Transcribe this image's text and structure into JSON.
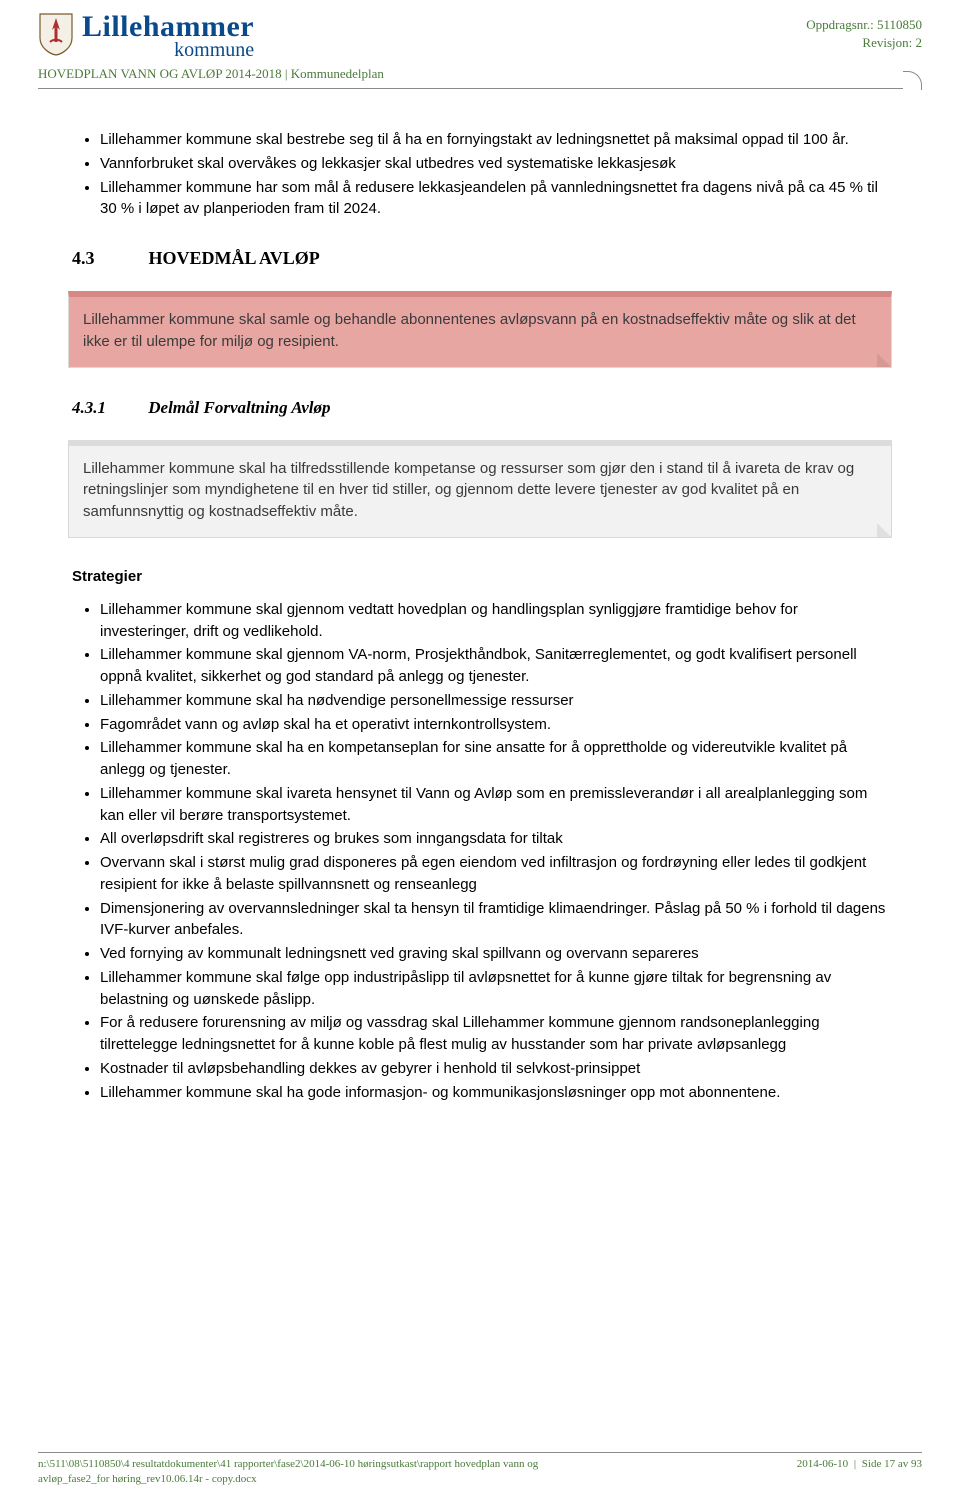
{
  "header": {
    "logo_main": "Lillehammer",
    "logo_sub": "kommune",
    "oppdragsnr_label": "Oppdragsnr.: 5110850",
    "revisjon_label": "Revisjon: 2",
    "doc_title": "HOVEDPLAN VANN OG AVLØP 2014-2018 | Kommunedelplan"
  },
  "top_bullets": [
    "Lillehammer kommune skal bestrebe seg til å ha en fornyingstakt av ledningsnettet på maksimal oppad til 100 år.",
    "Vannforbruket skal overvåkes og lekkasjer skal utbedres ved systematiske lekkasjesøk",
    "Lillehammer kommune har som mål å redusere lekkasjeandelen på vannledningsnettet fra dagens nivå på ca 45 % til 30 % i løpet av planperioden fram til 2024."
  ],
  "section": {
    "num": "4.3",
    "title": "HOVEDMÅL AVLØP",
    "callout_pink": "Lillehammer kommune skal samle og behandle abonnentenes avløpsvann på en kostnadseffektiv måte og slik at det ikke er til ulempe for miljø og resipient."
  },
  "subsection": {
    "num": "4.3.1",
    "title": "Delmål Forvaltning Avløp",
    "callout_grey": "Lillehammer kommune skal ha tilfredsstillende kompetanse og ressurser som gjør den i stand til å ivareta de krav og retningslinjer som myndighetene til en hver tid stiller, og gjennom dette levere tjenester av god kvalitet på en samfunnsnyttig og kostnadseffektiv måte."
  },
  "strategier": {
    "heading": "Strategier",
    "items": [
      "Lillehammer kommune skal gjennom vedtatt hovedplan og handlingsplan synliggjøre framtidige behov for investeringer, drift og vedlikehold.",
      "Lillehammer kommune skal gjennom VA-norm, Prosjekthåndbok, Sanitærreglementet, og godt kvalifisert personell oppnå kvalitet, sikkerhet og god standard på anlegg og tjenester.",
      "Lillehammer kommune skal ha nødvendige personellmessige ressurser",
      "Fagområdet vann og avløp skal ha et operativt internkontrollsystem.",
      "Lillehammer kommune skal ha en kompetanseplan for sine ansatte for å opprettholde og videreutvikle kvalitet på anlegg og tjenester.",
      "Lillehammer kommune skal ivareta hensynet til Vann og Avløp som en premissleverandør i all arealplanlegging som kan eller vil berøre transportsystemet.",
      "All overløpsdrift skal registreres og brukes som inngangsdata for tiltak",
      "Overvann skal i størst mulig grad disponeres på egen eiendom ved infiltrasjon og fordrøyning eller ledes til godkjent resipient for ikke å belaste spillvannsnett og renseanlegg",
      "Dimensjonering av overvannsledninger skal ta hensyn til framtidige klimaendringer. Påslag på 50 % i forhold til dagens IVF-kurver anbefales.",
      "Ved fornying av kommunalt ledningsnett ved graving skal spillvann og overvann separeres",
      "Lillehammer kommune skal følge opp industripåslipp til avløpsnettet for å kunne gjøre tiltak for begrensning av belastning og uønskede påslipp.",
      "For å redusere forurensning av miljø og vassdrag skal Lillehammer kommune gjennom randsoneplanlegging tilrettelegge ledningsnettet for å kunne koble på flest mulig av husstander som har private avløpsanlegg",
      "Kostnader til avløpsbehandling dekkes av gebyrer i henhold til selvkost-prinsippet",
      "Lillehammer kommune skal ha gode informasjon- og kommunikasjonsløsninger opp mot abonnentene."
    ]
  },
  "footer": {
    "path_line1": "n:\\511\\08\\5110850\\4 resultatdokumenter\\41 rapporter\\fase2\\2014-06-10 høringsutkast\\rapport hovedplan vann og",
    "path_line2": "avløp_fase2_for høring_rev10.06.14r - copy.docx",
    "date": "2014-06-10",
    "page_label": "Side 17 av 93"
  },
  "colors": {
    "brand_blue": "#0a4a8a",
    "accent_green": "#4a7a3a",
    "rule_grey": "#8a8a8a",
    "callout_pink_bg": "#e8a6a2",
    "callout_pink_top": "#d88884",
    "callout_grey_bg": "#f2f2f2",
    "callout_grey_top": "#dcdcdc",
    "text": "#000000"
  }
}
